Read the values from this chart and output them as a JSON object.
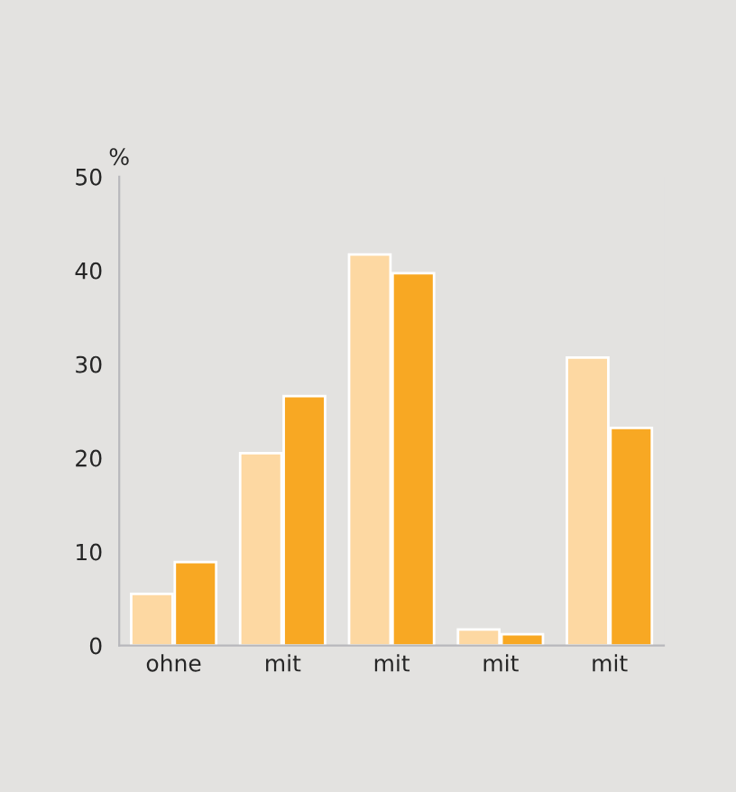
{
  "chart_data": {
    "type": "bar",
    "ylabel": "%",
    "categories": [
      "ohne",
      "mit",
      "mit",
      "mit",
      "mit"
    ],
    "series": [
      {
        "color": "#fdd8a2",
        "values": [
          5.5,
          20.5,
          41.7,
          1.7,
          30.7
        ]
      },
      {
        "color": "#f8a823",
        "values": [
          8.9,
          26.6,
          39.7,
          1.2,
          23.2
        ]
      }
    ],
    "ylim": [
      0,
      50
    ],
    "yticks": [
      0,
      10,
      20,
      30,
      40,
      50
    ],
    "grid": false,
    "legend": false
  }
}
